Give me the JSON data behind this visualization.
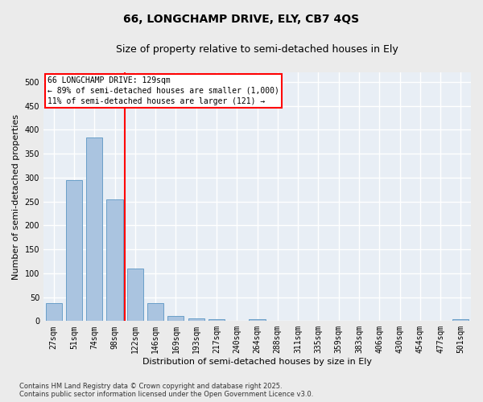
{
  "title": "66, LONGCHAMP DRIVE, ELY, CB7 4QS",
  "subtitle": "Size of property relative to semi-detached houses in Ely",
  "xlabel": "Distribution of semi-detached houses by size in Ely",
  "ylabel": "Number of semi-detached properties",
  "categories": [
    "27sqm",
    "51sqm",
    "74sqm",
    "98sqm",
    "122sqm",
    "146sqm",
    "169sqm",
    "193sqm",
    "217sqm",
    "240sqm",
    "264sqm",
    "288sqm",
    "311sqm",
    "335sqm",
    "359sqm",
    "383sqm",
    "406sqm",
    "430sqm",
    "454sqm",
    "477sqm",
    "501sqm"
  ],
  "values": [
    37,
    295,
    383,
    255,
    110,
    37,
    10,
    6,
    4,
    0,
    4,
    0,
    0,
    0,
    0,
    0,
    0,
    0,
    0,
    0,
    4
  ],
  "bar_color": "#aac4e0",
  "bar_edgecolor": "#6a9fc8",
  "bar_linewidth": 0.7,
  "property_line_label": "66 LONGCHAMP DRIVE: 129sqm",
  "annotation_smaller": "← 89% of semi-detached houses are smaller (1,000)",
  "annotation_larger": "11% of semi-detached houses are larger (121) →",
  "ylim": [
    0,
    520
  ],
  "yticks": [
    0,
    50,
    100,
    150,
    200,
    250,
    300,
    350,
    400,
    450,
    500
  ],
  "background_color": "#e8eef5",
  "grid_color": "#ffffff",
  "fig_background": "#ebebeb",
  "footer": "Contains HM Land Registry data © Crown copyright and database right 2025.\nContains public sector information licensed under the Open Government Licence v3.0.",
  "title_fontsize": 10,
  "subtitle_fontsize": 9,
  "xlabel_fontsize": 8,
  "ylabel_fontsize": 8,
  "annotation_fontsize": 7,
  "tick_fontsize": 7,
  "footer_fontsize": 6
}
